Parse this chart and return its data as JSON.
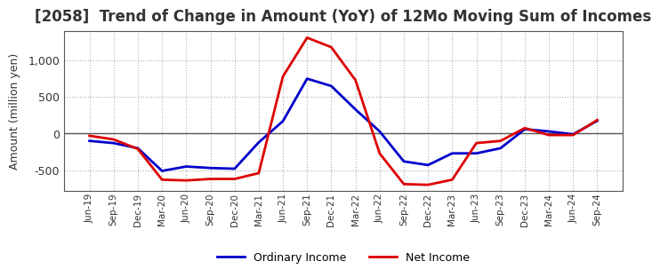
{
  "title": "[2058]  Trend of Change in Amount (YoY) of 12Mo Moving Sum of Incomes",
  "ylabel": "Amount (million yen)",
  "background_color": "#ffffff",
  "grid_color": "#aaaaaa",
  "line_ordinary_color": "#0000cc",
  "line_net_color": "#dd0000",
  "legend_ordinary": "Ordinary Income",
  "legend_net": "Net Income",
  "x_labels": [
    "Jun-19",
    "Sep-19",
    "Dec-19",
    "Mar-20",
    "Jun-20",
    "Sep-20",
    "Dec-20",
    "Mar-21",
    "Jun-21",
    "Sep-21",
    "Dec-21",
    "Mar-22",
    "Jun-22",
    "Sep-22",
    "Dec-22",
    "Mar-23",
    "Jun-23",
    "Sep-23",
    "Dec-23",
    "Mar-24",
    "Jun-24",
    "Sep-24"
  ],
  "ordinary_income": [
    -100,
    -130,
    -200,
    -510,
    -450,
    -470,
    -480,
    -120,
    170,
    750,
    650,
    330,
    30,
    -380,
    -430,
    -270,
    -270,
    -200,
    60,
    30,
    -10,
    175
  ],
  "net_income": [
    -30,
    -80,
    -210,
    -630,
    -640,
    -620,
    -620,
    -540,
    780,
    1310,
    1180,
    730,
    -270,
    -690,
    -700,
    -630,
    -130,
    -100,
    75,
    -20,
    -20,
    185
  ],
  "ylim": [
    -780,
    1400
  ],
  "yticks": [
    -500,
    0,
    500,
    1000
  ]
}
